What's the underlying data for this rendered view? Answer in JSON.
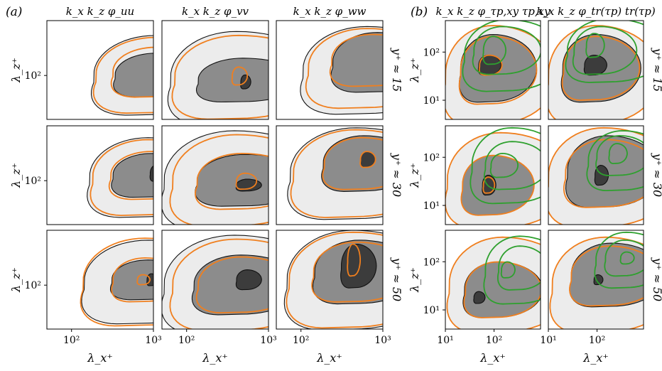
{
  "figure": {
    "panel_labels": [
      "(a)",
      "(b)"
    ],
    "colors": {
      "light_fill": "#ececec",
      "mid_fill": "#8c8c8c",
      "dark_fill": "#3c3c3c",
      "outline": "#111111",
      "orange": "#f07f1e",
      "green": "#2ea02e"
    }
  },
  "chart_data": [
    {
      "panel": "(a)",
      "type": "contour",
      "x_scale": "log",
      "y_scale": "log",
      "columns": [
        "k_x k_z φ_uu",
        "k_x k_z φ_vv",
        "k_x k_z φ_ww"
      ],
      "rows": [
        "y⁺ ≈ 15",
        "y⁺ ≈ 30",
        "y⁺ ≈ 50"
      ],
      "xlabel": "λ_x⁺",
      "ylabel": "λ_z⁺",
      "xlim": [
        50,
        1000
      ],
      "ylim": [
        30,
        450
      ],
      "xticks": [
        100,
        1000
      ],
      "xtick_labels": [
        "10²",
        "10³"
      ],
      "yticks": [
        100
      ],
      "ytick_labels": [
        "10²"
      ],
      "levels": [
        "light",
        "mid",
        "dark"
      ],
      "series": [
        {
          "name": "filled",
          "style": "grey filled contours, black outline"
        },
        {
          "name": "orange",
          "style": "orange line contours"
        }
      ]
    },
    {
      "panel": "(b)",
      "type": "contour",
      "x_scale": "log",
      "y_scale": "log",
      "columns": [
        "k_x k_z φ_τp,xy τp,xy",
        "k_x k_z φ_tr(τp) tr(τp)"
      ],
      "rows": [
        "y⁺ ≈ 15",
        "y⁺ ≈ 30",
        "y⁺ ≈ 50"
      ],
      "xlabel": "λ_x⁺",
      "ylabel": "λ_z⁺",
      "xlim": [
        10,
        900
      ],
      "ylim": [
        4,
        450
      ],
      "xticks": [
        10,
        100
      ],
      "xtick_labels": [
        "10¹",
        "10²"
      ],
      "yticks": [
        10,
        100
      ],
      "ytick_labels": [
        "10¹",
        "10²"
      ],
      "levels": [
        "light",
        "mid",
        "dark"
      ],
      "series": [
        {
          "name": "filled",
          "style": "grey filled contours, black outline"
        },
        {
          "name": "orange",
          "style": "orange line contours"
        },
        {
          "name": "green",
          "style": "green line contours"
        }
      ]
    }
  ]
}
